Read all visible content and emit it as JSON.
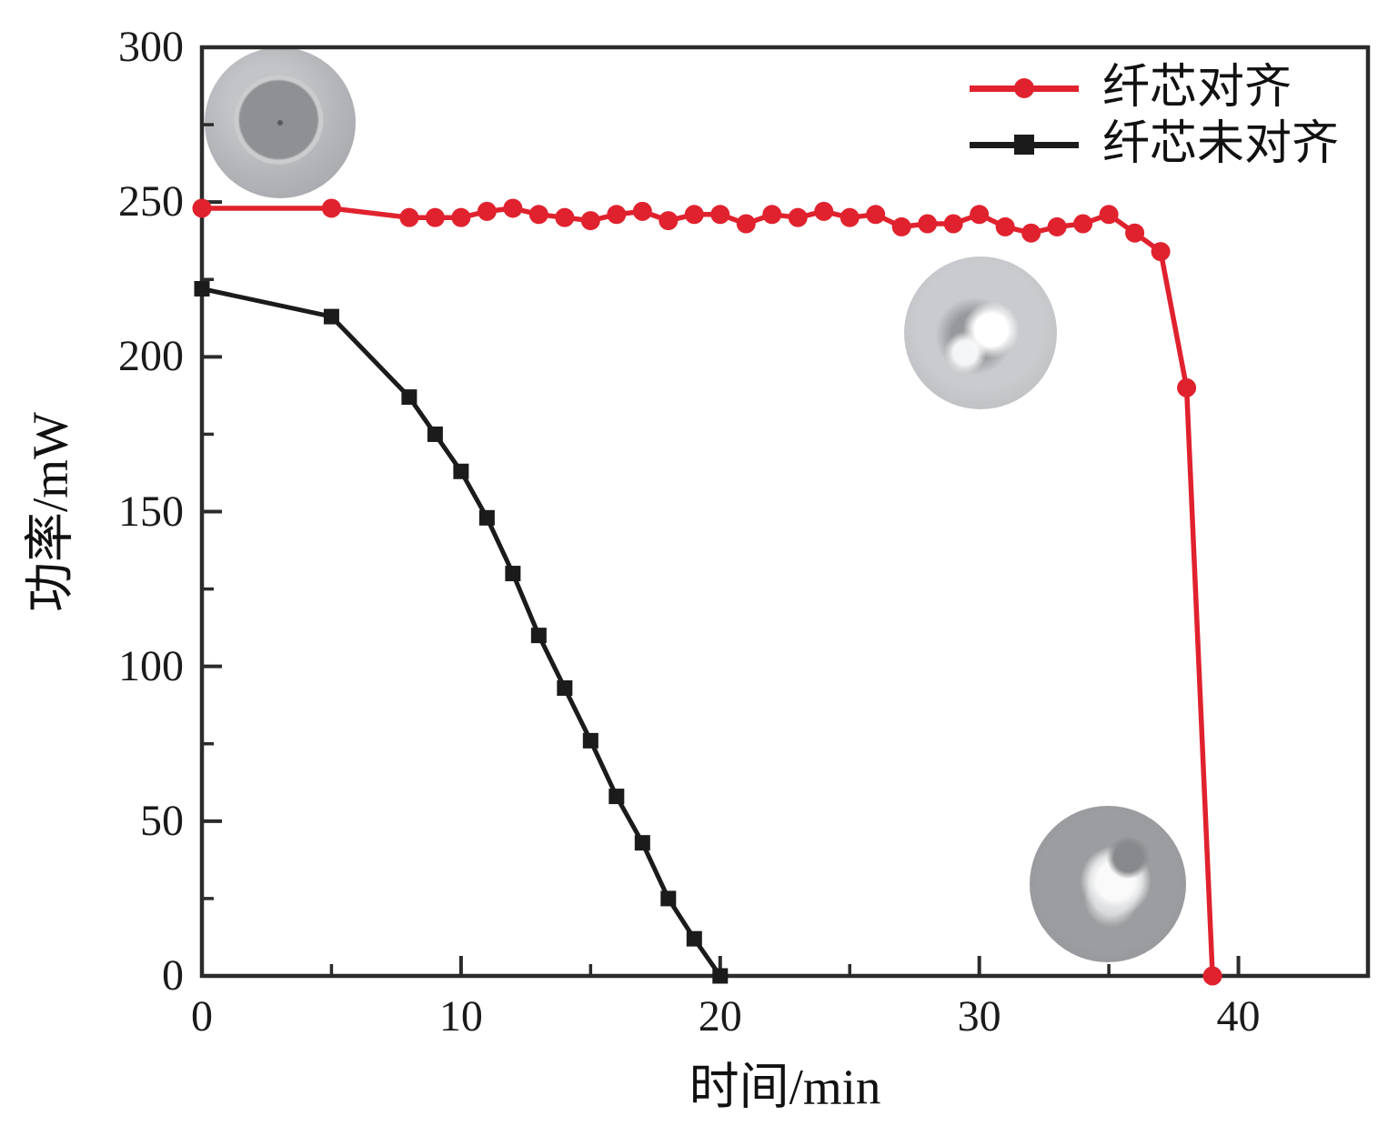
{
  "chart_data": {
    "type": "line",
    "title": "",
    "xlabel": "时间/min",
    "ylabel": "功率/mW",
    "xlim": [
      0,
      45
    ],
    "ylim": [
      0,
      300
    ],
    "x_major_ticks": [
      0,
      10,
      20,
      30,
      40
    ],
    "x_minor_ticks": [
      5,
      15,
      25,
      35
    ],
    "y_major_ticks": [
      0,
      50,
      100,
      150,
      200,
      250,
      300
    ],
    "y_minor_ticks": [
      25,
      75,
      125,
      175,
      225,
      275
    ],
    "grid": false,
    "legend_position": "top-right-inside",
    "frame_color": "#2b2b2b",
    "series": [
      {
        "name": "纤芯对齐",
        "color": "#e0222e",
        "marker": "circle",
        "x": [
          0,
          5,
          8,
          9,
          10,
          11,
          12,
          13,
          14,
          15,
          16,
          17,
          18,
          19,
          20,
          21,
          22,
          23,
          24,
          25,
          26,
          27,
          28,
          29,
          30,
          31,
          32,
          33,
          34,
          35,
          36,
          37,
          38,
          39
        ],
        "values": [
          248,
          248,
          245,
          245,
          245,
          247,
          248,
          246,
          245,
          244,
          246,
          247,
          244,
          246,
          246,
          243,
          246,
          245,
          247,
          245,
          246,
          242,
          243,
          243,
          246,
          242,
          240,
          242,
          243,
          246,
          240,
          234,
          190,
          0
        ]
      },
      {
        "name": "纤芯未对齐",
        "color": "#1b1b1b",
        "marker": "square",
        "x": [
          0,
          5,
          8,
          9,
          10,
          11,
          12,
          13,
          14,
          15,
          16,
          17,
          18,
          19,
          20
        ],
        "values": [
          222,
          213,
          187,
          175,
          163,
          148,
          130,
          110,
          93,
          76,
          58,
          43,
          25,
          12,
          0
        ]
      }
    ],
    "insets": [
      {
        "id": "inset-1",
        "description": "fiber end-face photo, intact polished ferrule (top left)"
      },
      {
        "id": "inset-2",
        "description": "fiber end-face photo, darkened burned end (middle)"
      },
      {
        "id": "inset-3",
        "description": "fiber end-face photo, shiny reflective end (middle right)"
      },
      {
        "id": "inset-4",
        "description": "fiber end-face photo, melted damaged core (bottom right)"
      }
    ]
  }
}
